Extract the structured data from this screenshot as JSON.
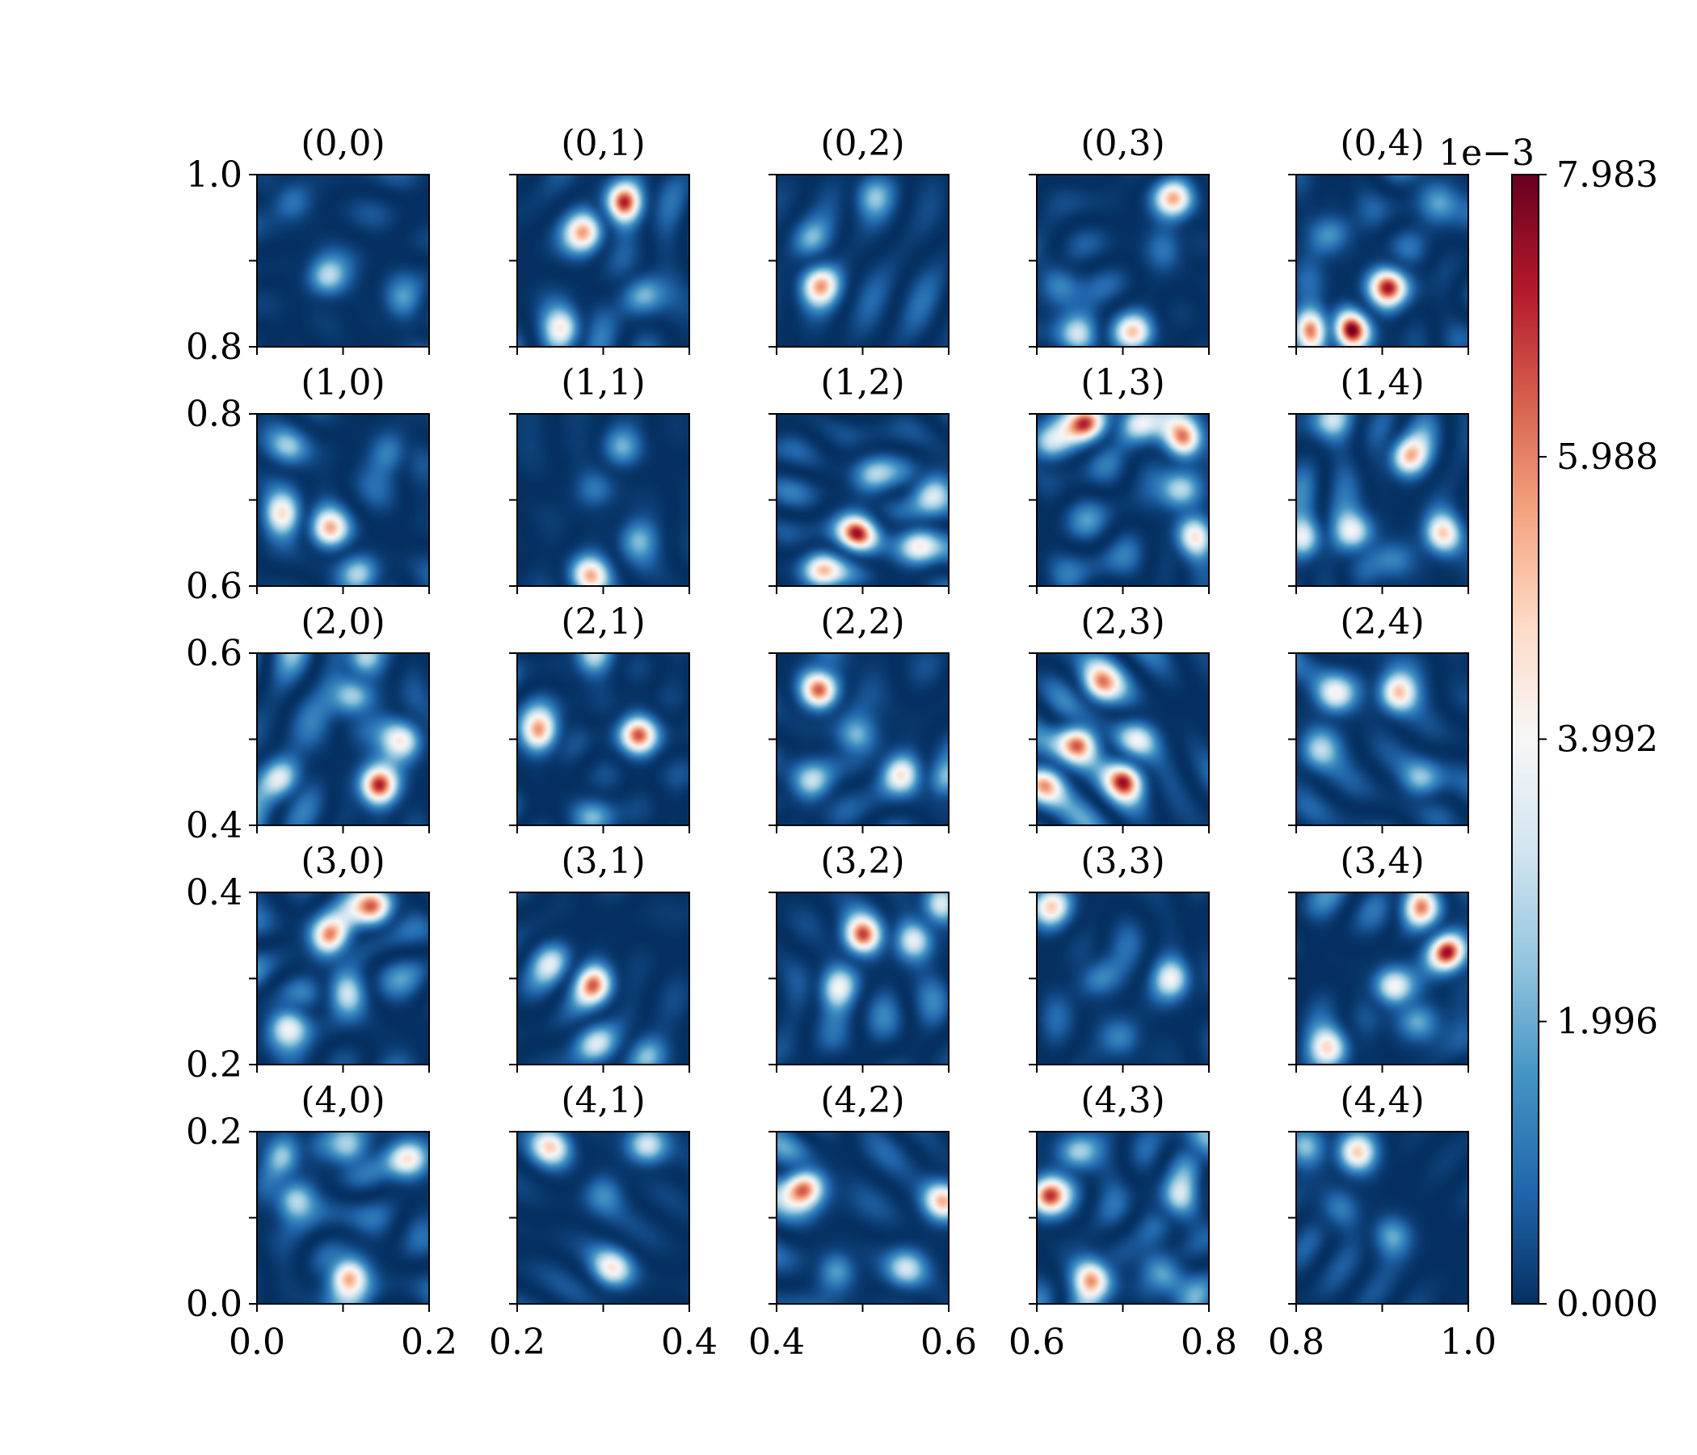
{
  "chart_data": {
    "type": "heatmap",
    "grid": {
      "rows": 5,
      "cols": 5
    },
    "panels": [
      {
        "row": 0,
        "col": 0,
        "title": "(0,0)",
        "xlim": [
          0.0,
          0.2
        ],
        "ylim": [
          0.8,
          1.0
        ],
        "peak": 0.003,
        "blobs": [
          {
            "x": 0.4,
            "y": 0.4,
            "a": 1.0
          },
          {
            "x": 0.85,
            "y": 0.25,
            "a": 0.6
          },
          {
            "x": 0.2,
            "y": 0.85,
            "a": 0.55
          }
        ]
      },
      {
        "row": 0,
        "col": 1,
        "title": "(0,1)",
        "xlim": [
          0.2,
          0.4
        ],
        "ylim": [
          0.8,
          1.0
        ],
        "peak": 0.0072,
        "blobs": [
          {
            "x": 0.62,
            "y": 0.84,
            "a": 1.0
          },
          {
            "x": 0.4,
            "y": 0.66,
            "a": 0.5
          },
          {
            "x": 0.28,
            "y": 0.1,
            "a": 0.45
          },
          {
            "x": 0.72,
            "y": 0.3,
            "a": 0.4
          }
        ]
      },
      {
        "row": 0,
        "col": 2,
        "title": "(0,2)",
        "xlim": [
          0.4,
          0.6
        ],
        "ylim": [
          0.8,
          1.0
        ],
        "peak": 0.0058,
        "blobs": [
          {
            "x": 0.25,
            "y": 0.36,
            "a": 1.0
          },
          {
            "x": 0.2,
            "y": 0.62,
            "a": 0.45
          },
          {
            "x": 0.55,
            "y": 0.88,
            "a": 0.35
          }
        ]
      },
      {
        "row": 0,
        "col": 3,
        "title": "(0,3)",
        "xlim": [
          0.6,
          0.8
        ],
        "ylim": [
          0.8,
          1.0
        ],
        "peak": 0.0055,
        "blobs": [
          {
            "x": 0.8,
            "y": 0.86,
            "a": 1.0
          },
          {
            "x": 0.25,
            "y": 0.07,
            "a": 0.85
          },
          {
            "x": 0.57,
            "y": 0.07,
            "a": 0.85
          },
          {
            "x": 0.12,
            "y": 0.35,
            "a": 0.75
          },
          {
            "x": 0.75,
            "y": 0.58,
            "a": 0.4
          }
        ]
      },
      {
        "row": 0,
        "col": 4,
        "title": "(0,4)",
        "xlim": [
          0.8,
          1.0
        ],
        "ylim": [
          0.8,
          1.0
        ],
        "peak": 0.008,
        "blobs": [
          {
            "x": 0.08,
            "y": 0.1,
            "a": 1.0
          },
          {
            "x": 0.33,
            "y": 0.1,
            "a": 0.7
          },
          {
            "x": 0.55,
            "y": 0.36,
            "a": 0.65
          },
          {
            "x": 0.82,
            "y": 0.84,
            "a": 0.55
          },
          {
            "x": 0.2,
            "y": 0.65,
            "a": 0.4
          }
        ]
      },
      {
        "row": 1,
        "col": 0,
        "title": "(1,0)",
        "xlim": [
          0.0,
          0.2
        ],
        "ylim": [
          0.6,
          0.8
        ],
        "peak": 0.0055,
        "blobs": [
          {
            "x": 0.15,
            "y": 0.42,
            "a": 1.0
          },
          {
            "x": 0.42,
            "y": 0.32,
            "a": 0.9
          },
          {
            "x": 0.6,
            "y": 0.06,
            "a": 0.8
          },
          {
            "x": 0.18,
            "y": 0.8,
            "a": 0.5
          },
          {
            "x": 0.78,
            "y": 0.78,
            "a": 0.5
          }
        ]
      },
      {
        "row": 1,
        "col": 1,
        "title": "(1,1)",
        "xlim": [
          0.2,
          0.4
        ],
        "ylim": [
          0.6,
          0.8
        ],
        "peak": 0.0055,
        "blobs": [
          {
            "x": 0.42,
            "y": 0.06,
            "a": 1.0
          },
          {
            "x": 0.45,
            "y": 0.55,
            "a": 0.45
          },
          {
            "x": 0.6,
            "y": 0.8,
            "a": 0.45
          },
          {
            "x": 0.7,
            "y": 0.27,
            "a": 0.4
          }
        ]
      },
      {
        "row": 1,
        "col": 2,
        "title": "(1,2)",
        "xlim": [
          0.4,
          0.6
        ],
        "ylim": [
          0.6,
          0.8
        ],
        "peak": 0.0075,
        "blobs": [
          {
            "x": 0.47,
            "y": 0.3,
            "a": 1.0
          },
          {
            "x": 0.9,
            "y": 0.55,
            "a": 0.8
          },
          {
            "x": 0.82,
            "y": 0.24,
            "a": 0.75
          },
          {
            "x": 0.25,
            "y": 0.08,
            "a": 0.65
          },
          {
            "x": 0.55,
            "y": 0.63,
            "a": 0.45
          }
        ]
      },
      {
        "row": 1,
        "col": 3,
        "title": "(1,3)",
        "xlim": [
          0.6,
          0.8
        ],
        "ylim": [
          0.6,
          0.8
        ],
        "peak": 0.0072,
        "blobs": [
          {
            "x": 0.87,
            "y": 0.85,
            "a": 1.0
          },
          {
            "x": 0.85,
            "y": 0.55,
            "a": 0.75
          },
          {
            "x": 0.92,
            "y": 0.28,
            "a": 0.7
          },
          {
            "x": 0.3,
            "y": 0.95,
            "a": 0.7
          },
          {
            "x": 0.58,
            "y": 0.95,
            "a": 0.6
          },
          {
            "x": 0.05,
            "y": 0.82,
            "a": 0.4
          }
        ]
      },
      {
        "row": 1,
        "col": 4,
        "title": "(1,4)",
        "xlim": [
          0.8,
          1.0
        ],
        "ylim": [
          0.6,
          0.8
        ],
        "peak": 0.0055,
        "blobs": [
          {
            "x": 0.35,
            "y": 0.3,
            "a": 1.0
          },
          {
            "x": 0.85,
            "y": 0.3,
            "a": 0.9
          },
          {
            "x": 0.63,
            "y": 0.75,
            "a": 0.8
          },
          {
            "x": 0.05,
            "y": 0.27,
            "a": 0.75
          },
          {
            "x": 0.2,
            "y": 0.97,
            "a": 0.6
          },
          {
            "x": 0.6,
            "y": 0.15,
            "a": 0.5
          }
        ]
      },
      {
        "row": 2,
        "col": 0,
        "title": "(2,0)",
        "xlim": [
          0.0,
          0.2
        ],
        "ylim": [
          0.4,
          0.6
        ],
        "peak": 0.0072,
        "blobs": [
          {
            "x": 0.7,
            "y": 0.23,
            "a": 1.0
          },
          {
            "x": 0.58,
            "y": 0.74,
            "a": 0.55
          },
          {
            "x": 0.85,
            "y": 0.5,
            "a": 0.5
          },
          {
            "x": 0.15,
            "y": 0.27,
            "a": 0.45
          },
          {
            "x": 0.6,
            "y": 0.99,
            "a": 0.45
          }
        ]
      },
      {
        "row": 2,
        "col": 1,
        "title": "(2,1)",
        "xlim": [
          0.2,
          0.4
        ],
        "ylim": [
          0.4,
          0.6
        ],
        "peak": 0.0066,
        "blobs": [
          {
            "x": 0.14,
            "y": 0.53,
            "a": 1.0
          },
          {
            "x": 0.7,
            "y": 0.53,
            "a": 1.0
          },
          {
            "x": 0.43,
            "y": 0.98,
            "a": 0.6
          },
          {
            "x": 0.45,
            "y": 0.04,
            "a": 0.5
          }
        ]
      },
      {
        "row": 2,
        "col": 2,
        "title": "(2,2)",
        "xlim": [
          0.4,
          0.6
        ],
        "ylim": [
          0.4,
          0.6
        ],
        "peak": 0.0065,
        "blobs": [
          {
            "x": 0.25,
            "y": 0.77,
            "a": 1.0
          },
          {
            "x": 0.47,
            "y": 0.5,
            "a": 0.75
          },
          {
            "x": 0.2,
            "y": 0.25,
            "a": 0.75
          },
          {
            "x": 0.72,
            "y": 0.3,
            "a": 0.6
          },
          {
            "x": 0.98,
            "y": 0.25,
            "a": 0.5
          },
          {
            "x": 0.3,
            "y": 0.98,
            "a": 0.4
          }
        ]
      },
      {
        "row": 2,
        "col": 3,
        "title": "(2,3)",
        "xlim": [
          0.6,
          0.8
        ],
        "ylim": [
          0.4,
          0.6
        ],
        "peak": 0.0075,
        "blobs": [
          {
            "x": 0.25,
            "y": 0.49,
            "a": 1.0
          },
          {
            "x": 0.05,
            "y": 0.25,
            "a": 0.65
          },
          {
            "x": 0.52,
            "y": 0.27,
            "a": 0.6
          },
          {
            "x": 0.58,
            "y": 0.5,
            "a": 0.4
          },
          {
            "x": 0.35,
            "y": 0.8,
            "a": 0.4
          }
        ]
      },
      {
        "row": 2,
        "col": 4,
        "title": "(2,4)",
        "xlim": [
          0.8,
          1.0
        ],
        "ylim": [
          0.4,
          0.6
        ],
        "peak": 0.0052,
        "blobs": [
          {
            "x": 0.58,
            "y": 0.77,
            "a": 1.0
          },
          {
            "x": 0.22,
            "y": 0.75,
            "a": 0.8
          },
          {
            "x": 0.12,
            "y": 0.44,
            "a": 0.5
          },
          {
            "x": 0.72,
            "y": 0.25,
            "a": 0.45
          }
        ]
      },
      {
        "row": 3,
        "col": 0,
        "title": "(3,0)",
        "xlim": [
          0.0,
          0.2
        ],
        "ylim": [
          0.2,
          0.4
        ],
        "peak": 0.0065,
        "blobs": [
          {
            "x": 0.42,
            "y": 0.73,
            "a": 1.0
          },
          {
            "x": 0.18,
            "y": 0.25,
            "a": 0.55
          },
          {
            "x": 0.7,
            "y": 0.9,
            "a": 0.45
          },
          {
            "x": 0.52,
            "y": 0.42,
            "a": 0.4
          }
        ]
      },
      {
        "row": 3,
        "col": 1,
        "title": "(3,1)",
        "xlim": [
          0.2,
          0.4
        ],
        "ylim": [
          0.2,
          0.4
        ],
        "peak": 0.0065,
        "blobs": [
          {
            "x": 0.45,
            "y": 0.47,
            "a": 1.0
          },
          {
            "x": 0.45,
            "y": 0.13,
            "a": 0.55
          },
          {
            "x": 0.75,
            "y": 0.05,
            "a": 0.5
          },
          {
            "x": 0.2,
            "y": 0.6,
            "a": 0.35
          }
        ]
      },
      {
        "row": 3,
        "col": 2,
        "title": "(3,2)",
        "xlim": [
          0.4,
          0.6
        ],
        "ylim": [
          0.2,
          0.4
        ],
        "peak": 0.0068,
        "blobs": [
          {
            "x": 0.5,
            "y": 0.74,
            "a": 1.0
          },
          {
            "x": 0.8,
            "y": 0.72,
            "a": 0.75
          },
          {
            "x": 0.95,
            "y": 0.93,
            "a": 0.6
          },
          {
            "x": 0.35,
            "y": 0.45,
            "a": 0.5
          }
        ]
      },
      {
        "row": 3,
        "col": 3,
        "title": "(3,3)",
        "xlim": [
          0.6,
          0.8
        ],
        "ylim": [
          0.2,
          0.4
        ],
        "peak": 0.005,
        "blobs": [
          {
            "x": 0.08,
            "y": 0.92,
            "a": 1.0
          },
          {
            "x": 0.8,
            "y": 0.5,
            "a": 0.8
          },
          {
            "x": 0.35,
            "y": 0.5,
            "a": 0.65
          },
          {
            "x": 0.5,
            "y": 0.15,
            "a": 0.5
          }
        ]
      },
      {
        "row": 3,
        "col": 4,
        "title": "(3,4)",
        "xlim": [
          0.8,
          1.0
        ],
        "ylim": [
          0.2,
          0.4
        ],
        "peak": 0.0075,
        "blobs": [
          {
            "x": 0.88,
            "y": 0.65,
            "a": 1.0
          },
          {
            "x": 0.72,
            "y": 0.92,
            "a": 0.55
          },
          {
            "x": 0.55,
            "y": 0.45,
            "a": 0.55
          },
          {
            "x": 0.7,
            "y": 0.25,
            "a": 0.55
          },
          {
            "x": 0.2,
            "y": 0.1,
            "a": 0.4
          }
        ]
      },
      {
        "row": 4,
        "col": 0,
        "title": "(4,0)",
        "xlim": [
          0.0,
          0.2
        ],
        "ylim": [
          0.0,
          0.2
        ],
        "peak": 0.0055,
        "blobs": [
          {
            "x": 0.52,
            "y": 0.18,
            "a": 1.0
          },
          {
            "x": 0.88,
            "y": 0.85,
            "a": 0.85
          },
          {
            "x": 0.2,
            "y": 0.62,
            "a": 0.55
          },
          {
            "x": 0.15,
            "y": 0.88,
            "a": 0.5
          },
          {
            "x": 0.55,
            "y": 0.88,
            "a": 0.45
          }
        ]
      },
      {
        "row": 4,
        "col": 1,
        "title": "(4,1)",
        "xlim": [
          0.2,
          0.4
        ],
        "ylim": [
          0.0,
          0.2
        ],
        "peak": 0.005,
        "blobs": [
          {
            "x": 0.2,
            "y": 0.92,
            "a": 1.0
          },
          {
            "x": 0.75,
            "y": 0.92,
            "a": 1.0
          },
          {
            "x": 0.55,
            "y": 0.2,
            "a": 0.75
          },
          {
            "x": 0.5,
            "y": 0.65,
            "a": 0.35
          }
        ]
      },
      {
        "row": 4,
        "col": 2,
        "title": "(4,2)",
        "xlim": [
          0.4,
          0.6
        ],
        "ylim": [
          0.0,
          0.2
        ],
        "peak": 0.0065,
        "blobs": [
          {
            "x": 0.17,
            "y": 0.69,
            "a": 1.0
          },
          {
            "x": 0.97,
            "y": 0.6,
            "a": 0.75
          },
          {
            "x": 0.35,
            "y": 0.2,
            "a": 0.4
          },
          {
            "x": 0.75,
            "y": 0.2,
            "a": 0.35
          }
        ]
      },
      {
        "row": 4,
        "col": 3,
        "title": "(4,3)",
        "xlim": [
          0.6,
          0.8
        ],
        "ylim": [
          0.0,
          0.2
        ],
        "peak": 0.007,
        "blobs": [
          {
            "x": 0.05,
            "y": 0.63,
            "a": 1.0
          },
          {
            "x": 0.33,
            "y": 0.15,
            "a": 0.95
          },
          {
            "x": 0.72,
            "y": 0.17,
            "a": 0.6
          },
          {
            "x": 0.22,
            "y": 0.88,
            "a": 0.55
          },
          {
            "x": 0.98,
            "y": 0.95,
            "a": 0.5
          },
          {
            "x": 0.82,
            "y": 0.6,
            "a": 0.45
          }
        ]
      },
      {
        "row": 4,
        "col": 4,
        "title": "(4,4)",
        "xlim": [
          0.8,
          1.0
        ],
        "ylim": [
          0.0,
          0.2
        ],
        "peak": 0.005,
        "blobs": [
          {
            "x": 0.35,
            "y": 0.88,
            "a": 1.0
          },
          {
            "x": 0.05,
            "y": 0.92,
            "a": 0.6
          },
          {
            "x": 0.55,
            "y": 0.4,
            "a": 0.4
          },
          {
            "x": 0.25,
            "y": 0.55,
            "a": 0.35
          }
        ]
      }
    ],
    "colorbar": {
      "colormap": "RdBu_r",
      "range": [
        0.0,
        0.007983
      ],
      "ticks": [
        "0.000",
        "1.996",
        "3.992",
        "5.988",
        "7.983"
      ],
      "offset_label": "1e−3"
    },
    "colors": {
      "low": "#053061",
      "mid": "#f7f7f7",
      "high": "#67001f"
    }
  }
}
